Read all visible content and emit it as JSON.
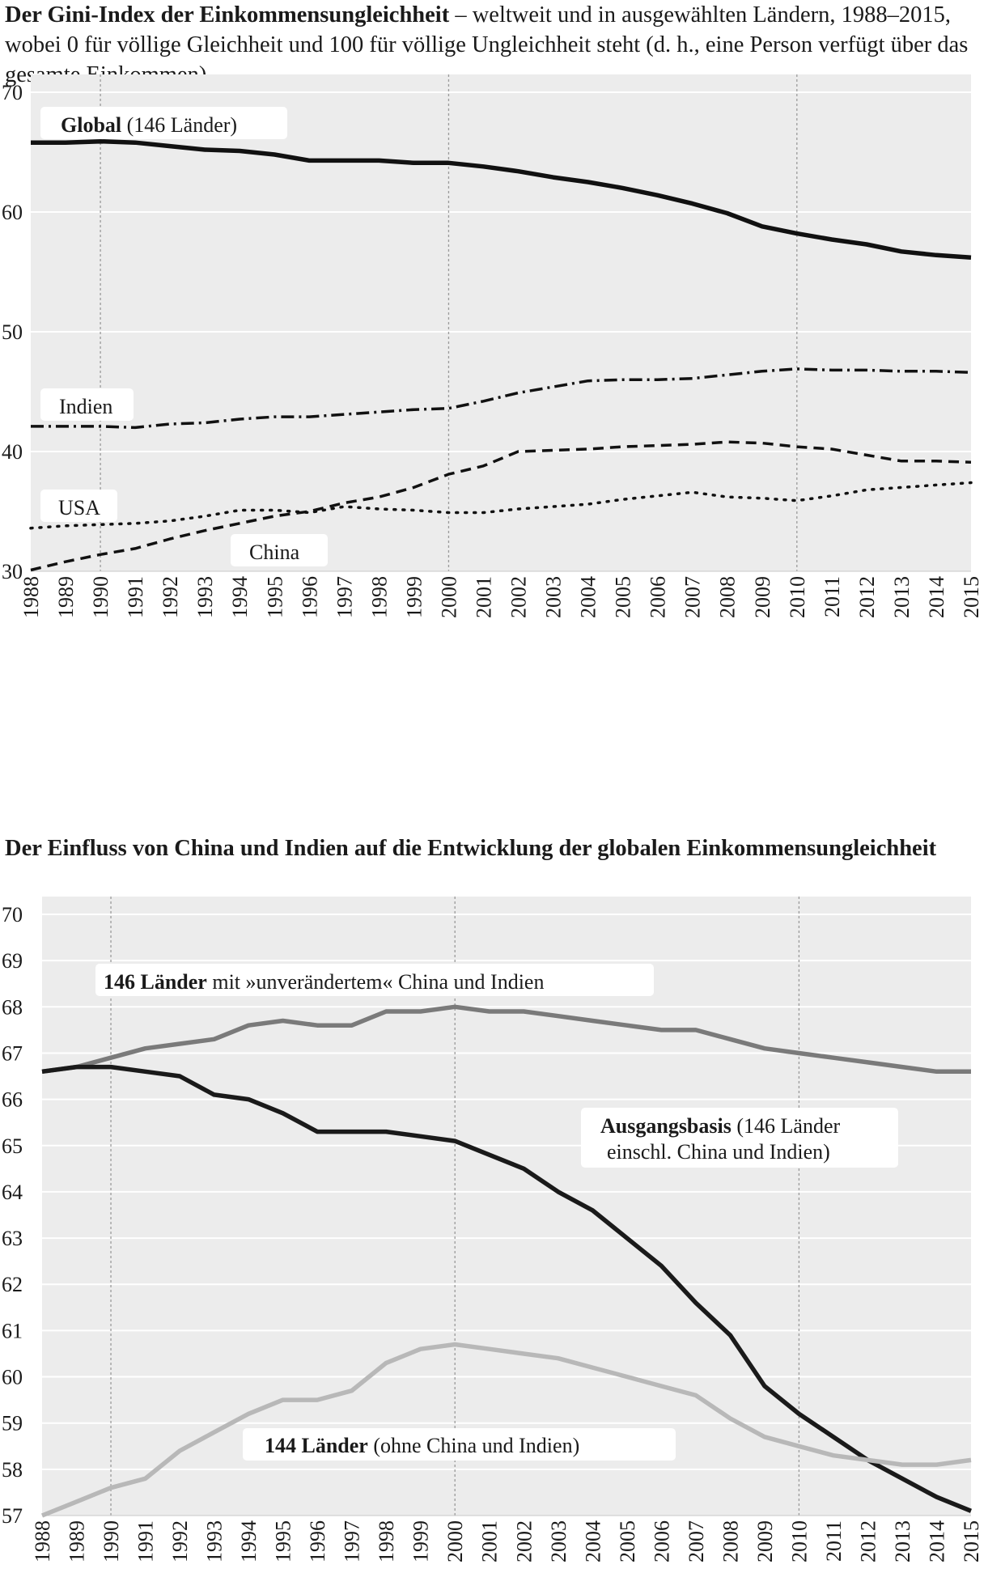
{
  "chart_data": [
    {
      "type": "line",
      "title_bold": "Der Gini-Index der Einkommensungleichheit",
      "title_rest": " – weltweit und in ausgewählten Ländern, 1988–2015, wobei 0 für völlige Gleichheit und 100 für völlige Ungleichheit steht (d. h., eine Person verfügt über das gesamte Einkommen)",
      "x": [
        1988,
        1989,
        1990,
        1991,
        1992,
        1993,
        1994,
        1995,
        1996,
        1997,
        1998,
        1999,
        2000,
        2001,
        2002,
        2003,
        2004,
        2005,
        2006,
        2007,
        2008,
        2009,
        2010,
        2011,
        2012,
        2013,
        2014,
        2015
      ],
      "ylim": [
        30,
        70
      ],
      "yticks": [
        30,
        40,
        50,
        60,
        70
      ],
      "vlines": [
        1990,
        2000,
        2010
      ],
      "series": [
        {
          "name": "Global",
          "label_bold": "Global",
          "label_rest": " (146 Länder)",
          "style": "solid",
          "values": [
            65.8,
            65.8,
            65.9,
            65.8,
            65.5,
            65.2,
            65.1,
            64.8,
            64.3,
            64.3,
            64.3,
            64.1,
            64.1,
            63.8,
            63.4,
            62.9,
            62.5,
            62.0,
            61.4,
            60.7,
            59.9,
            58.8,
            58.2,
            57.7,
            57.3,
            56.7,
            56.4,
            56.2
          ]
        },
        {
          "name": "Indien",
          "label_bold": "",
          "label_rest": "Indien",
          "style": "dashdot",
          "values": [
            42.1,
            42.1,
            42.1,
            42.0,
            42.3,
            42.4,
            42.7,
            42.9,
            42.9,
            43.1,
            43.3,
            43.5,
            43.6,
            44.2,
            44.9,
            45.4,
            45.9,
            46.0,
            46.0,
            46.1,
            46.4,
            46.7,
            46.9,
            46.8,
            46.8,
            46.7,
            46.7,
            46.6
          ]
        },
        {
          "name": "USA",
          "label_bold": "",
          "label_rest": "USA",
          "style": "dotted",
          "values": [
            33.6,
            33.8,
            33.9,
            34.0,
            34.2,
            34.6,
            35.1,
            35.1,
            34.9,
            35.4,
            35.2,
            35.1,
            34.9,
            34.9,
            35.2,
            35.4,
            35.6,
            36.0,
            36.3,
            36.6,
            36.2,
            36.1,
            35.9,
            36.3,
            36.8,
            37.0,
            37.2,
            37.4
          ]
        },
        {
          "name": "China",
          "label_bold": "",
          "label_rest": "China",
          "style": "dashed",
          "values": [
            30.1,
            30.8,
            31.4,
            31.9,
            32.7,
            33.4,
            34.0,
            34.6,
            35.0,
            35.7,
            36.2,
            37.0,
            38.1,
            38.8,
            40.0,
            40.1,
            40.2,
            40.4,
            40.5,
            40.6,
            40.8,
            40.7,
            40.4,
            40.2,
            39.7,
            39.2,
            39.2,
            39.1
          ]
        }
      ]
    },
    {
      "type": "line",
      "title_bold": "Der Einfluss von China und Indien auf die Entwicklung der globalen Einkommensungleichheit",
      "title_rest": "",
      "x": [
        1988,
        1989,
        1990,
        1991,
        1992,
        1993,
        1994,
        1995,
        1996,
        1997,
        1998,
        1999,
        2000,
        2001,
        2002,
        2003,
        2004,
        2005,
        2006,
        2007,
        2008,
        2009,
        2010,
        2011,
        2012,
        2013,
        2014,
        2015
      ],
      "ylim": [
        57,
        70
      ],
      "yticks": [
        57,
        58,
        59,
        60,
        61,
        62,
        63,
        64,
        65,
        66,
        67,
        68,
        69,
        70
      ],
      "vlines": [
        1990,
        2000,
        2010
      ],
      "series": [
        {
          "name": "146 Länder mit »unverändertem« China und Indien",
          "label_bold": "146 Länder",
          "label_rest": " mit »unverändertem« China und Indien",
          "color": "#7a7a7a",
          "values": [
            66.6,
            66.7,
            66.9,
            67.1,
            67.2,
            67.3,
            67.6,
            67.7,
            67.6,
            67.6,
            67.9,
            67.9,
            68.0,
            67.9,
            67.9,
            67.8,
            67.7,
            67.6,
            67.5,
            67.5,
            67.3,
            67.1,
            67.0,
            66.9,
            66.8,
            66.7,
            66.6,
            66.6
          ]
        },
        {
          "name": "Ausgangsbasis (146 Länder einschl. China und Indien)",
          "label_bold": "Ausgangsbasis",
          "label_rest": " (146 Länder",
          "label_line2": "einschl. China und Indien)",
          "color": "#1a1a1a",
          "values": [
            66.6,
            66.7,
            66.7,
            66.6,
            66.5,
            66.1,
            66.0,
            65.7,
            65.3,
            65.3,
            65.3,
            65.2,
            65.1,
            64.8,
            64.5,
            64.0,
            63.6,
            63.0,
            62.4,
            61.6,
            60.9,
            59.8,
            59.2,
            58.7,
            58.2,
            57.8,
            57.4,
            57.1
          ]
        },
        {
          "name": "144 Länder (ohne China und Indien)",
          "label_bold": "144 Länder",
          "label_rest": " (ohne China und Indien)",
          "color": "#b8b8b8",
          "values": [
            57.0,
            57.3,
            57.6,
            57.8,
            58.4,
            58.8,
            59.2,
            59.5,
            59.5,
            59.7,
            60.3,
            60.6,
            60.7,
            60.6,
            60.5,
            60.4,
            60.2,
            60.0,
            59.8,
            59.6,
            59.1,
            58.7,
            58.5,
            58.3,
            58.2,
            58.1,
            58.1,
            58.2
          ]
        }
      ]
    }
  ]
}
